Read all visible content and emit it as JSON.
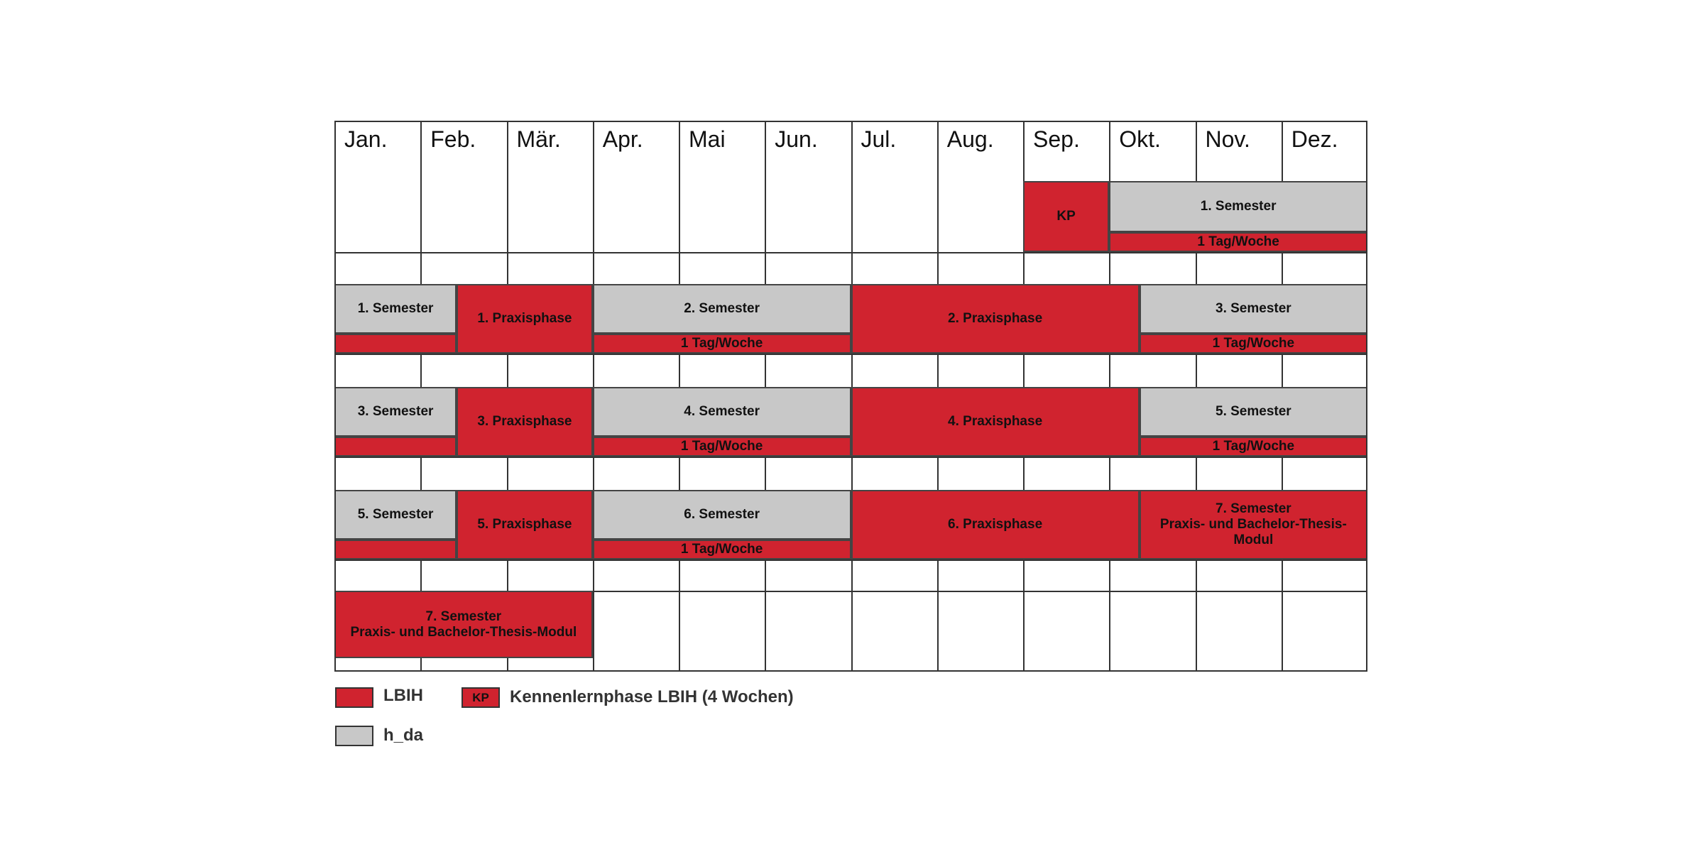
{
  "months": [
    "Jan.",
    "Feb.",
    "Mär.",
    "Apr.",
    "Mai",
    "Jun.",
    "Jul.",
    "Aug.",
    "Sep.",
    "Okt.",
    "Nov.",
    "Dez."
  ],
  "rows": [
    {
      "blocks": [
        {
          "label": "KP",
          "color": "red",
          "start_month": 9,
          "end_month": 9
        },
        {
          "label": "1. Semester",
          "color": "grey",
          "start_month": 10,
          "end_month": 12
        },
        {
          "label": "1 Tag/Woche",
          "color": "red",
          "start_month": 10,
          "end_month": 12
        }
      ]
    },
    {
      "blocks": [
        {
          "label": "1. Semester",
          "color": "grey",
          "start_month": 1,
          "end_month": 2
        },
        {
          "label": "",
          "color": "red",
          "start_month": 1,
          "end_month": 2
        },
        {
          "label": "1. Praxisphase",
          "color": "red",
          "start_month": 2,
          "end_month": 3
        },
        {
          "label": "2. Semester",
          "color": "grey",
          "start_month": 4,
          "end_month": 6
        },
        {
          "label": "1 Tag/Woche",
          "color": "red",
          "start_month": 4,
          "end_month": 6
        },
        {
          "label": "2. Praxisphase",
          "color": "red",
          "start_month": 7,
          "end_month": 10
        },
        {
          "label": "3. Semester",
          "color": "grey",
          "start_month": 10,
          "end_month": 12
        },
        {
          "label": "1 Tag/Woche",
          "color": "red",
          "start_month": 10,
          "end_month": 12
        }
      ]
    },
    {
      "blocks": [
        {
          "label": "3. Semester",
          "color": "grey",
          "start_month": 1,
          "end_month": 2
        },
        {
          "label": "",
          "color": "red",
          "start_month": 1,
          "end_month": 2
        },
        {
          "label": "3. Praxisphase",
          "color": "red",
          "start_month": 2,
          "end_month": 3
        },
        {
          "label": "4. Semester",
          "color": "grey",
          "start_month": 4,
          "end_month": 6
        },
        {
          "label": "1 Tag/Woche",
          "color": "red",
          "start_month": 4,
          "end_month": 6
        },
        {
          "label": "4. Praxisphase",
          "color": "red",
          "start_month": 7,
          "end_month": 10
        },
        {
          "label": "5. Semester",
          "color": "grey",
          "start_month": 10,
          "end_month": 12
        },
        {
          "label": "1 Tag/Woche",
          "color": "red",
          "start_month": 10,
          "end_month": 12
        }
      ]
    },
    {
      "blocks": [
        {
          "label": "5. Semester",
          "color": "grey",
          "start_month": 1,
          "end_month": 2
        },
        {
          "label": "",
          "color": "red",
          "start_month": 1,
          "end_month": 2
        },
        {
          "label": "5. Praxisphase",
          "color": "red",
          "start_month": 2,
          "end_month": 3
        },
        {
          "label": "6. Semester",
          "color": "grey",
          "start_month": 4,
          "end_month": 6
        },
        {
          "label": "1 Tag/Woche",
          "color": "red",
          "start_month": 4,
          "end_month": 6
        },
        {
          "label": "6. Praxisphase",
          "color": "red",
          "start_month": 7,
          "end_month": 10
        },
        {
          "label": "7. Semester\nPraxis- und Bachelor-Thesis-\nModul",
          "color": "red",
          "start_month": 10,
          "end_month": 12
        }
      ]
    },
    {
      "blocks": [
        {
          "label": "7. Semester\nPraxis- und Bachelor-Thesis-Modul",
          "color": "red",
          "start_month": 1,
          "end_month": 3
        }
      ]
    }
  ],
  "legend": {
    "lbih_label": "LBIH",
    "kp_badge": "KP",
    "kp_label": "Kennenlernphase LBIH (4 Wochen)",
    "hda_label": "h_da"
  },
  "colors": {
    "red": "#d0232f",
    "grey": "#c8c8c8"
  }
}
